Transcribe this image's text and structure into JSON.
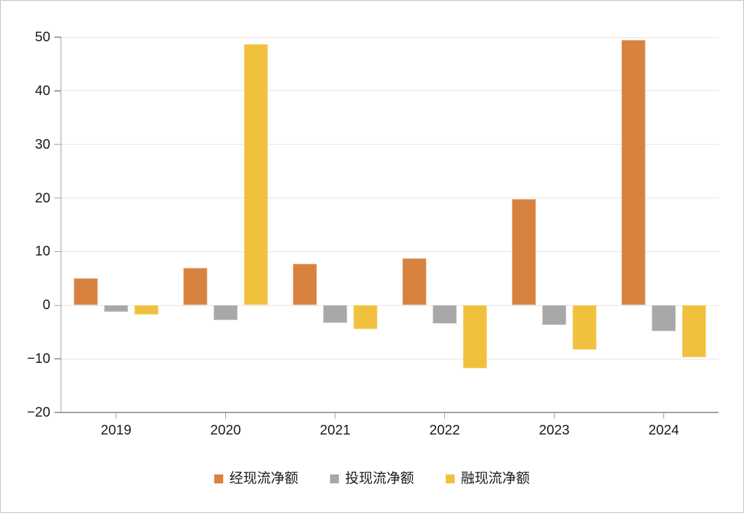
{
  "chart_data": {
    "type": "bar",
    "title": "",
    "xlabel": "",
    "ylabel": "",
    "categories": [
      "2019",
      "2020",
      "2021",
      "2022",
      "2023",
      "2024"
    ],
    "series": [
      {
        "name": "经现流净额",
        "color": "#D8823F",
        "values": [
          5.0,
          7.0,
          7.8,
          8.8,
          19.8,
          49.5
        ]
      },
      {
        "name": "投现流净额",
        "color": "#A8A8A8",
        "values": [
          -1.3,
          -2.8,
          -3.3,
          -3.4,
          -3.7,
          -4.9
        ]
      },
      {
        "name": "融现流净额",
        "color": "#F1C13E",
        "values": [
          -1.7,
          48.7,
          -4.5,
          -11.8,
          -8.3,
          -9.7
        ]
      }
    ],
    "ylim": [
      -20,
      50
    ],
    "yticks": [
      50,
      40,
      30,
      20,
      10,
      0,
      -10,
      -20
    ],
    "grid": true,
    "legend_position": "bottom",
    "colors": {
      "axis": "#9E9E9E",
      "gridline": "#E4E4E4",
      "label": "#1A1A1A"
    }
  }
}
